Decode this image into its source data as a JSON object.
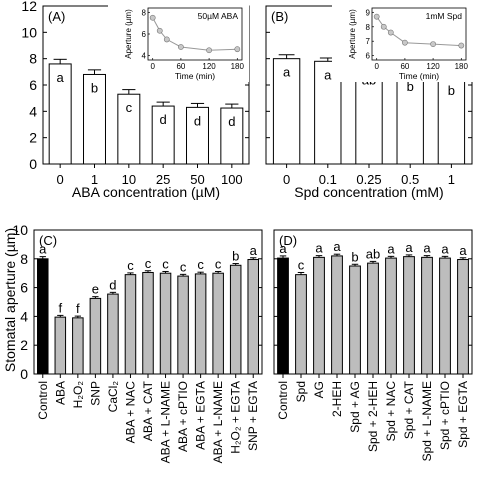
{
  "figure": {
    "ylabel": "Stomatal aperture (µm)"
  },
  "chart_data": [
    {
      "type": "bar",
      "panel": "(A)",
      "categories": [
        "0",
        "1",
        "10",
        "25",
        "50",
        "100"
      ],
      "values": [
        7.6,
        6.8,
        5.3,
        4.4,
        4.3,
        4.25
      ],
      "errors": [
        0.35,
        0.35,
        0.35,
        0.3,
        0.3,
        0.3
      ],
      "letters": [
        "a",
        "b",
        "c",
        "d",
        "d",
        "d"
      ],
      "xlabel": "ABA concentration (µM)",
      "ylim": [
        0,
        12
      ],
      "yticks": [
        0,
        2,
        4,
        6,
        8,
        10,
        12
      ],
      "bar_colors": [
        "#ffffff",
        "#ffffff",
        "#ffffff",
        "#ffffff",
        "#ffffff",
        "#ffffff"
      ],
      "inset": {
        "type": "line",
        "title": "50µM ABA",
        "xlabel": "Time (min)",
        "ylabel": "Aperture (µm)",
        "x": [
          0,
          15,
          30,
          60,
          120,
          180
        ],
        "y": [
          7.5,
          6.3,
          5.5,
          4.8,
          4.5,
          4.6
        ],
        "xticks": [
          0,
          60,
          120,
          180
        ],
        "yticks": [
          4,
          6,
          8
        ],
        "ylim": [
          3.6,
          8.4
        ],
        "xlim": [
          -10,
          190
        ]
      }
    },
    {
      "type": "bar",
      "panel": "(B)",
      "categories": [
        "0",
        "0.1",
        "0.25",
        "0.5",
        "1"
      ],
      "values": [
        8.0,
        7.8,
        7.4,
        6.9,
        6.6
      ],
      "errors": [
        0.3,
        0.25,
        0.25,
        0.25,
        0.3
      ],
      "letters": [
        "a",
        "a",
        "ab",
        "b",
        "b"
      ],
      "xlabel": "Spd concentration (mM)",
      "ylim": [
        0,
        12
      ],
      "yticks": [
        0,
        2,
        4,
        6,
        8,
        10,
        12
      ],
      "bar_colors": [
        "#ffffff",
        "#ffffff",
        "#ffffff",
        "#ffffff",
        "#ffffff"
      ],
      "inset": {
        "type": "line",
        "title": "1mM Spd",
        "xlabel": "Time (min)",
        "ylabel": "Aperture (µm)",
        "x": [
          0,
          15,
          30,
          60,
          120,
          180
        ],
        "y": [
          8.7,
          8.0,
          7.6,
          6.9,
          6.8,
          6.7
        ],
        "xticks": [
          0,
          60,
          120,
          180
        ],
        "yticks": [
          6,
          7,
          8,
          9
        ],
        "ylim": [
          5.7,
          9.3
        ],
        "xlim": [
          -10,
          190
        ]
      }
    },
    {
      "type": "bar",
      "panel": "(C)",
      "categories": [
        "Control",
        "ABA",
        "H₂O₂",
        "SNP",
        "CaCl₂",
        "ABA + NAC",
        "ABA + CAT",
        "ABA + L-NAME",
        "ABA + cPTIO",
        "ABA + EGTA",
        "ABA + L-NAME",
        "H₂O₂ + EGTA",
        "SNP + EGTA"
      ],
      "values": [
        8.0,
        3.95,
        3.9,
        5.25,
        5.55,
        6.9,
        7.05,
        7.0,
        6.8,
        6.95,
        7.0,
        7.55,
        7.95
      ],
      "errors": [
        0.15,
        0.12,
        0.12,
        0.12,
        0.12,
        0.12,
        0.12,
        0.12,
        0.12,
        0.12,
        0.12,
        0.12,
        0.12
      ],
      "letters": [
        "a",
        "f",
        "f",
        "e",
        "d",
        "c",
        "c",
        "c",
        "c",
        "c",
        "c",
        "b",
        "a"
      ],
      "ylim": [
        0,
        10
      ],
      "yticks": [
        0,
        2,
        4,
        6,
        8,
        10
      ],
      "bar_colors": [
        "#000000",
        "#bdbdbd",
        "#bdbdbd",
        "#bdbdbd",
        "#bdbdbd",
        "#bdbdbd",
        "#bdbdbd",
        "#bdbdbd",
        "#bdbdbd",
        "#bdbdbd",
        "#bdbdbd",
        "#bdbdbd",
        "#bdbdbd"
      ]
    },
    {
      "type": "bar",
      "panel": "(D)",
      "categories": [
        "Control",
        "Spd",
        "AG",
        "2-HEH",
        "Spd + AG",
        "Spd + 2-HEH",
        "Spd + NAC",
        "Spd + CAT",
        "Spd + L-NAME",
        "Spd + cPTIO",
        "Spd + EGTA"
      ],
      "values": [
        8.05,
        6.9,
        8.1,
        8.2,
        7.5,
        7.7,
        8.05,
        8.15,
        8.1,
        8.05,
        7.95
      ],
      "errors": [
        0.15,
        0.15,
        0.12,
        0.12,
        0.12,
        0.12,
        0.12,
        0.12,
        0.12,
        0.12,
        0.12
      ],
      "letters": [
        "a",
        "c",
        "a",
        "a",
        "b",
        "ab",
        "a",
        "a",
        "a",
        "a",
        "a"
      ],
      "ylim": [
        0,
        10
      ],
      "yticks": [
        0,
        2,
        4,
        6,
        8,
        10
      ],
      "bar_colors": [
        "#000000",
        "#bdbdbd",
        "#bdbdbd",
        "#bdbdbd",
        "#bdbdbd",
        "#bdbdbd",
        "#bdbdbd",
        "#bdbdbd",
        "#bdbdbd",
        "#bdbdbd",
        "#bdbdbd"
      ]
    }
  ]
}
